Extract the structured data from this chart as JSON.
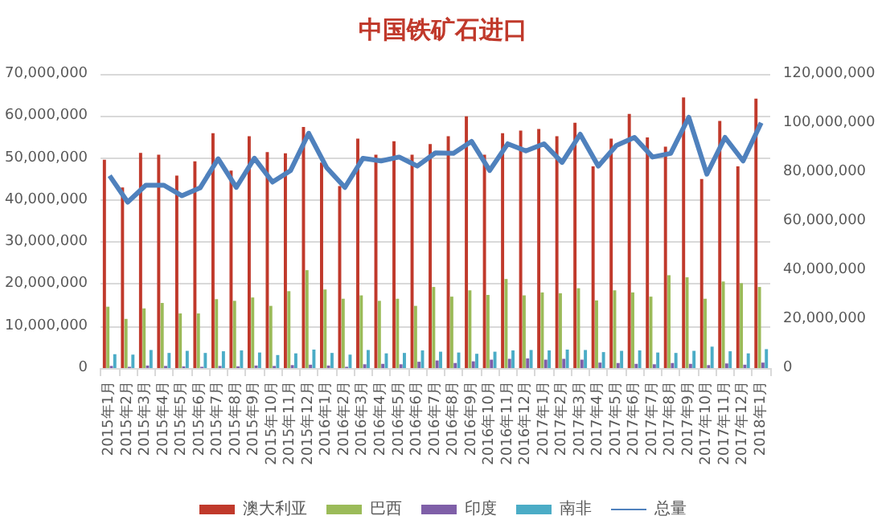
{
  "chart_data": {
    "type": "bar",
    "title": "中国铁矿石进口",
    "categories": [
      "2015年1月",
      "2015年2月",
      "2015年3月",
      "2015年4月",
      "2015年5月",
      "2015年6月",
      "2015年7月",
      "2015年8月",
      "2015年9月",
      "2015年10月",
      "2015年11月",
      "2015年12月",
      "2016年1月",
      "2016年2月",
      "2016年3月",
      "2016年4月",
      "2016年5月",
      "2016年6月",
      "2016年7月",
      "2016年8月",
      "2016年9月",
      "2016年10月",
      "2016年11月",
      "2016年12月",
      "2017年1月",
      "2017年2月",
      "2017年3月",
      "2017年4月",
      "2017年5月",
      "2017年6月",
      "2017年7月",
      "2017年8月",
      "2017年9月",
      "2017年10月",
      "2017年11月",
      "2017年12月",
      "2018年1月"
    ],
    "series": [
      {
        "name": "澳大利亚",
        "color": "#c0392b",
        "values": [
          49600000,
          43000000,
          51200000,
          50800000,
          45800000,
          49200000,
          55900000,
          47000000,
          55200000,
          51400000,
          51100000,
          57400000,
          48900000,
          43300000,
          54600000,
          50800000,
          54000000,
          50800000,
          53300000,
          55200000,
          59900000,
          50800000,
          55900000,
          56500000,
          56900000,
          55200000,
          58400000,
          48000000,
          54600000,
          60500000,
          54900000,
          52700000,
          64400000,
          45000000,
          58800000,
          48000000,
          64100000
        ]
      },
      {
        "name": "巴西",
        "color": "#9bbb59",
        "values": [
          14600000,
          11700000,
          14200000,
          15500000,
          13000000,
          13000000,
          16400000,
          16000000,
          16800000,
          14800000,
          18300000,
          23300000,
          18700000,
          16500000,
          17300000,
          16000000,
          16500000,
          14800000,
          19300000,
          17000000,
          18500000,
          17400000,
          21200000,
          17300000,
          18000000,
          17800000,
          19000000,
          16100000,
          18500000,
          18000000,
          17000000,
          22100000,
          21600000,
          16500000,
          20600000,
          20200000,
          19300000
        ]
      },
      {
        "name": "印度",
        "color": "#7f5fa8",
        "values": [
          500000,
          300000,
          600000,
          500000,
          400000,
          300000,
          500000,
          400000,
          600000,
          500000,
          700000,
          800000,
          600000,
          300000,
          900000,
          1000000,
          900000,
          1500000,
          1800000,
          1200000,
          1600000,
          2000000,
          2200000,
          2300000,
          2000000,
          2200000,
          2000000,
          1300000,
          1200000,
          1000000,
          900000,
          1200000,
          1000000,
          700000,
          1100000,
          800000,
          1300000
        ]
      },
      {
        "name": "南非",
        "color": "#4bacc6",
        "values": [
          3300000,
          3200000,
          4300000,
          3600000,
          4100000,
          3600000,
          4000000,
          4200000,
          3700000,
          3100000,
          3500000,
          4400000,
          3600000,
          3200000,
          4300000,
          3500000,
          3600000,
          4200000,
          3900000,
          3700000,
          3400000,
          3900000,
          4200000,
          4300000,
          4200000,
          4400000,
          4300000,
          3800000,
          4100000,
          4200000,
          3700000,
          3600000,
          4100000,
          5100000,
          4000000,
          3500000,
          4500000
        ]
      },
      {
        "name": "总量",
        "type": "line",
        "axis": "y2",
        "color": "#4f81bd",
        "values": [
          78500000,
          67700000,
          74600000,
          74600000,
          70300000,
          73500000,
          85400000,
          73700000,
          85600000,
          75900000,
          80600000,
          95800000,
          81700000,
          73700000,
          85600000,
          84500000,
          86100000,
          82400000,
          87800000,
          87600000,
          92500000,
          80600000,
          91500000,
          88600000,
          91500000,
          83900000,
          95400000,
          82400000,
          90800000,
          94100000,
          86100000,
          87600000,
          102300000,
          79100000,
          94100000,
          84500000,
          100100000
        ]
      }
    ],
    "ylim": [
      0,
      70000000
    ],
    "yticks": [
      {
        "value": 0,
        "label": "0"
      },
      {
        "value": 10000000,
        "label": "10,000,000"
      },
      {
        "value": 20000000,
        "label": "20,000,000"
      },
      {
        "value": 30000000,
        "label": "30,000,000"
      },
      {
        "value": 40000000,
        "label": "40,000,000"
      },
      {
        "value": 50000000,
        "label": "50,000,000"
      },
      {
        "value": 60000000,
        "label": "60,000,000"
      },
      {
        "value": 70000000,
        "label": "70,000,000"
      }
    ],
    "y2lim": [
      0,
      120000000
    ],
    "y2ticks": [
      {
        "value": 0,
        "label": "0"
      },
      {
        "value": 20000000,
        "label": "20,000,000"
      },
      {
        "value": 40000000,
        "label": "40,000,000"
      },
      {
        "value": 60000000,
        "label": "60,000,000"
      },
      {
        "value": 80000000,
        "label": "80,000,000"
      },
      {
        "value": 100000000,
        "label": "100,000,000"
      },
      {
        "value": 120000000,
        "label": "120,000,000"
      }
    ],
    "grid": "y",
    "legend": "bottom",
    "marker": "none",
    "line_style": "solid"
  }
}
